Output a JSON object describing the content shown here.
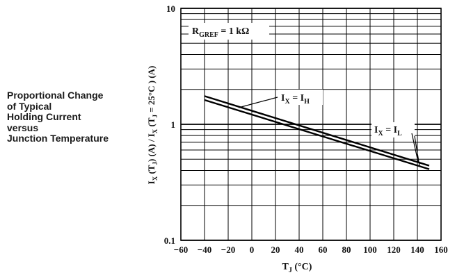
{
  "side_title": [
    "Proportional Change",
    "of Typical",
    "Holding Current",
    "versus",
    "Junction Temperature"
  ],
  "chart_data": {
    "type": "line",
    "title": "Proportional Change of Typical Holding Current versus Junction Temperature",
    "xlabel": "T_J (°C)",
    "ylabel": "I_X (T_J) (A) / I_X (T_J = 25°C ) (A)",
    "xlim": [
      -60,
      160
    ],
    "ylim": [
      0.1,
      10
    ],
    "yscale": "log",
    "x_ticks": [
      "−60",
      "−40",
      "−20",
      "0",
      "20",
      "40",
      "60",
      "80",
      "100",
      "120",
      "140",
      "160"
    ],
    "y_ticks": [
      "0.1",
      "1",
      "10"
    ],
    "grid": true,
    "annotation": "R_GREF = 1 kΩ",
    "series": [
      {
        "name": "I_X = I_H",
        "x": [
          -40,
          150
        ],
        "y": [
          1.75,
          0.44
        ]
      },
      {
        "name": "I_X = I_L",
        "x": [
          -40,
          150
        ],
        "y": [
          1.62,
          0.41
        ]
      }
    ]
  }
}
